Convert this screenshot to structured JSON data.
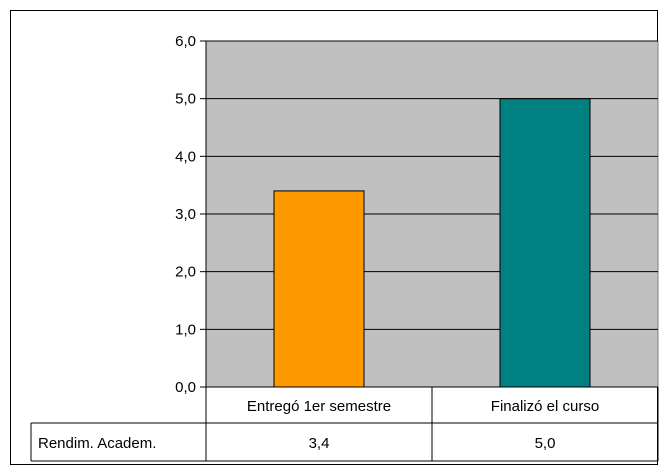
{
  "chart_data": {
    "type": "bar",
    "categories": [
      "Entregó 1er semestre",
      "Finalizó el curso"
    ],
    "series": [
      {
        "name": "Rendim. Academ.",
        "values": [
          3.4,
          5.0
        ],
        "colors": [
          "#ff9900",
          "#008080"
        ]
      }
    ],
    "value_labels": [
      "3,4",
      "5,0"
    ],
    "ylim": [
      0,
      6
    ],
    "y_ticks": [
      "0,0",
      "1,0",
      "2,0",
      "3,0",
      "4,0",
      "5,0",
      "6,0"
    ],
    "plot_background": "#c0c0c0",
    "grid": true,
    "legend": "data table below chart"
  }
}
